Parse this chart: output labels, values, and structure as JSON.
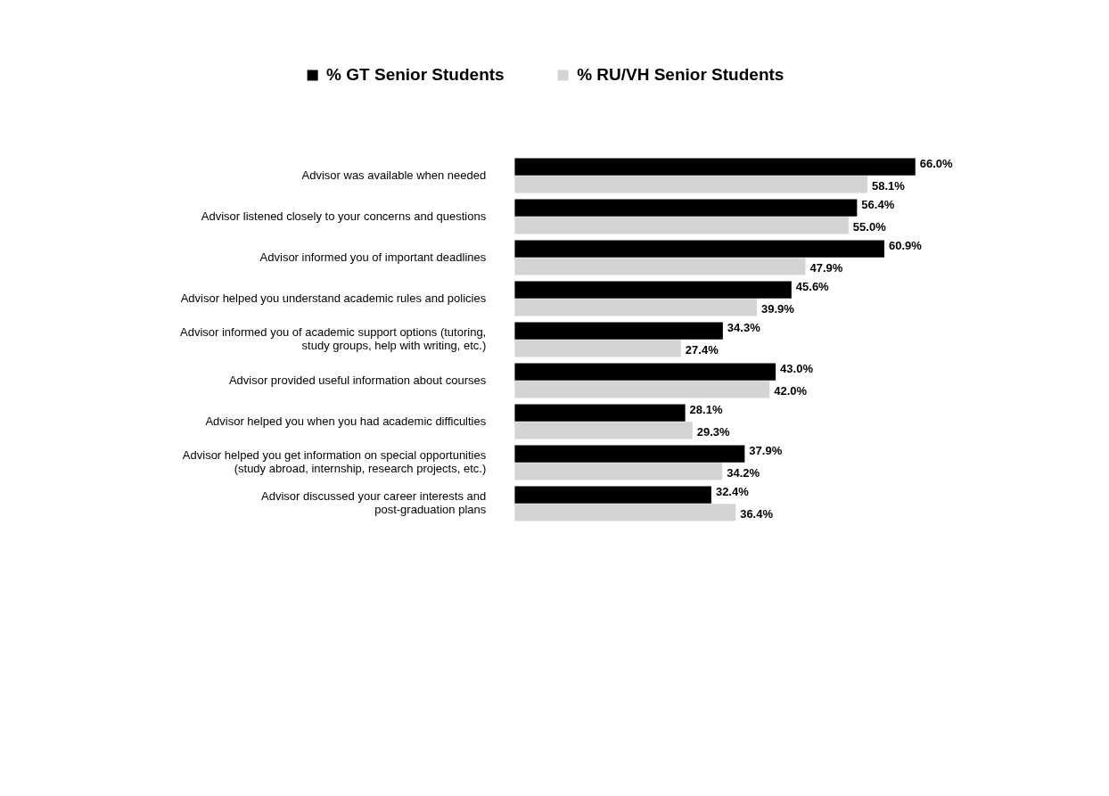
{
  "chart_data": {
    "type": "bar",
    "orientation": "horizontal",
    "legend": "top",
    "tick_labels": "y",
    "categories": [
      "Advisor was available when needed",
      "Advisor listened closely to your concerns and questions",
      "Advisor informed you of important deadlines",
      "Advisor helped you understand academic rules and policies",
      "Advisor informed you of academic support options (tutoring,\nstudy groups, help with writing, etc.)",
      "Advisor provided useful information about courses",
      "Advisor helped you when you had academic difficulties",
      "Advisor helped you get information on special opportunities\n(study abroad, internship, research projects, etc.)",
      "Advisor discussed your career interests and\npost-graduation plans"
    ],
    "series": [
      {
        "name": "% GT Senior Students",
        "color": "#000000",
        "values": [
          66.0,
          56.4,
          60.9,
          45.6,
          34.3,
          43.0,
          28.1,
          37.9,
          32.4
        ],
        "value_labels": [
          "66.0%",
          "56.4%",
          "60.9%",
          "45.6%",
          "34.3%",
          "43.0%",
          "28.1%",
          "37.9%",
          "32.4%"
        ]
      },
      {
        "name": "% RU/VH Senior Students",
        "color": "#d4d4d4",
        "values": [
          58.1,
          55.0,
          47.9,
          39.9,
          27.4,
          42.0,
          29.3,
          34.2,
          36.4
        ],
        "value_labels": [
          "58.1%",
          "55.0%",
          "47.9%",
          "39.9%",
          "27.4%",
          "42.0%",
          "29.3%",
          "34.2%",
          "36.4%"
        ]
      }
    ]
  }
}
